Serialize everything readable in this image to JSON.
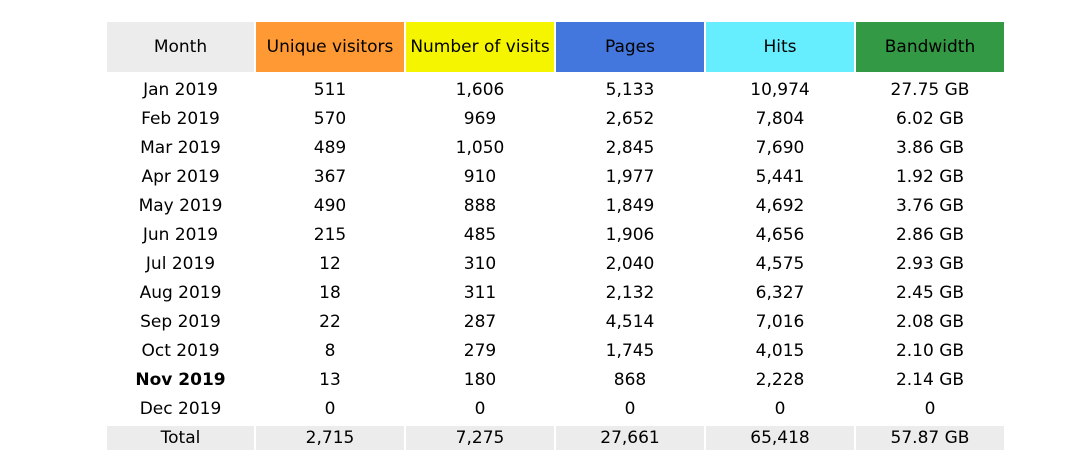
{
  "columns": [
    {
      "label": "Month",
      "color": "#ececec"
    },
    {
      "label": "Unique visitors",
      "color": "#ff9933"
    },
    {
      "label": "Number of visits",
      "color": "#f5f500"
    },
    {
      "label": "Pages",
      "color": "#4477dd"
    },
    {
      "label": "Hits",
      "color": "#66eeff"
    },
    {
      "label": "Bandwidth",
      "color": "#339944"
    }
  ],
  "rows": [
    {
      "month": "Jan 2019",
      "unique": "511",
      "visits": "1,606",
      "pages": "5,133",
      "hits": "10,974",
      "bandwidth": "27.75 GB"
    },
    {
      "month": "Feb 2019",
      "unique": "570",
      "visits": "969",
      "pages": "2,652",
      "hits": "7,804",
      "bandwidth": "6.02 GB"
    },
    {
      "month": "Mar 2019",
      "unique": "489",
      "visits": "1,050",
      "pages": "2,845",
      "hits": "7,690",
      "bandwidth": "3.86 GB"
    },
    {
      "month": "Apr 2019",
      "unique": "367",
      "visits": "910",
      "pages": "1,977",
      "hits": "5,441",
      "bandwidth": "1.92 GB"
    },
    {
      "month": "May 2019",
      "unique": "490",
      "visits": "888",
      "pages": "1,849",
      "hits": "4,692",
      "bandwidth": "3.76 GB"
    },
    {
      "month": "Jun 2019",
      "unique": "215",
      "visits": "485",
      "pages": "1,906",
      "hits": "4,656",
      "bandwidth": "2.86 GB"
    },
    {
      "month": "Jul 2019",
      "unique": "12",
      "visits": "310",
      "pages": "2,040",
      "hits": "4,575",
      "bandwidth": "2.93 GB"
    },
    {
      "month": "Aug 2019",
      "unique": "18",
      "visits": "311",
      "pages": "2,132",
      "hits": "6,327",
      "bandwidth": "2.45 GB"
    },
    {
      "month": "Sep 2019",
      "unique": "22",
      "visits": "287",
      "pages": "4,514",
      "hits": "7,016",
      "bandwidth": "2.08 GB"
    },
    {
      "month": "Oct 2019",
      "unique": "8",
      "visits": "279",
      "pages": "1,745",
      "hits": "4,015",
      "bandwidth": "2.10 GB"
    },
    {
      "month": "Nov 2019",
      "unique": "13",
      "visits": "180",
      "pages": "868",
      "hits": "2,228",
      "bandwidth": "2.14 GB",
      "current": true
    },
    {
      "month": "Dec 2019",
      "unique": "0",
      "visits": "0",
      "pages": "0",
      "hits": "0",
      "bandwidth": "0"
    }
  ],
  "total": {
    "label": "Total",
    "unique": "2,715",
    "visits": "7,275",
    "pages": "27,661",
    "hits": "65,418",
    "bandwidth": "57.87 GB"
  }
}
